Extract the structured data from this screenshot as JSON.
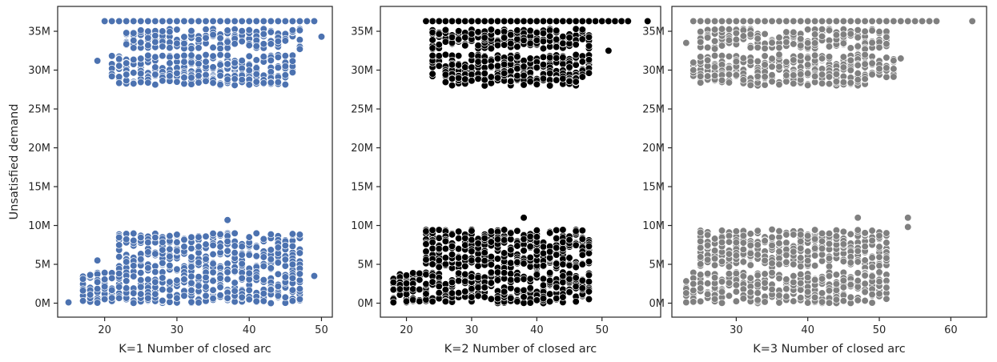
{
  "chart_data": [
    {
      "type": "scatter",
      "title": "",
      "xlabel": "K=1 Number of closed arc",
      "ylabel": "Unsatisfied demand",
      "xlim": [
        13.5,
        51.5
      ],
      "ylim": [
        -1.8,
        38.2
      ],
      "xticks": [
        {
          "value": 20,
          "label": "20"
        },
        {
          "value": 30,
          "label": "30"
        },
        {
          "value": 40,
          "label": "40"
        },
        {
          "value": 50,
          "label": "50"
        }
      ],
      "yticks": [
        {
          "value": 0,
          "label": "0M"
        },
        {
          "value": 5,
          "label": "5M"
        },
        {
          "value": 10,
          "label": "10M"
        },
        {
          "value": 15,
          "label": "15M"
        },
        {
          "value": 20,
          "label": "20M"
        },
        {
          "value": 25,
          "label": "25M"
        },
        {
          "value": 30,
          "label": "30M"
        },
        {
          "value": 35,
          "label": "35M"
        }
      ],
      "y_unit": "millions",
      "marker_color": "#4c72b0",
      "clusters": [
        {
          "x_range": [
            20,
            49
          ],
          "y_center": 36.3,
          "y_spread": 0.05
        },
        {
          "x_range": [
            23,
            47
          ],
          "y_center": 34.0,
          "y_spread": 1.3
        },
        {
          "x_range": [
            21,
            46
          ],
          "y_center": 30.5,
          "y_spread": 1.5
        },
        {
          "x_range": [
            22,
            45
          ],
          "y_center": 28.8,
          "y_spread": 0.8
        },
        {
          "x_range": [
            22,
            47
          ],
          "y_center": 6.5,
          "y_spread": 2.5
        },
        {
          "x_range": [
            17,
            47
          ],
          "y_center": 2.0,
          "y_spread": 2.0
        }
      ],
      "points": [
        {
          "x": 15,
          "y": 0.1
        },
        {
          "x": 17,
          "y": 0.3
        },
        {
          "x": 19,
          "y": 5.5
        },
        {
          "x": 19,
          "y": 31.2
        },
        {
          "x": 50,
          "y": 34.3
        },
        {
          "x": 49,
          "y": 3.5
        },
        {
          "x": 20,
          "y": 36.3
        },
        {
          "x": 49,
          "y": 36.3
        },
        {
          "x": 37,
          "y": 10.7
        },
        {
          "x": 21,
          "y": 29.2
        }
      ],
      "legend": "none",
      "grid": false
    },
    {
      "type": "scatter",
      "title": "",
      "xlabel": "K=2 Number of closed arc",
      "ylabel": "",
      "xlim": [
        16.0,
        59.0
      ],
      "ylim": [
        -1.8,
        38.2
      ],
      "xticks": [
        {
          "value": 20,
          "label": "20"
        },
        {
          "value": 30,
          "label": "30"
        },
        {
          "value": 40,
          "label": "40"
        },
        {
          "value": 50,
          "label": "50"
        }
      ],
      "yticks": [
        {
          "value": 0,
          "label": "0M"
        },
        {
          "value": 5,
          "label": "5M"
        },
        {
          "value": 10,
          "label": "10M"
        },
        {
          "value": 15,
          "label": "15M"
        },
        {
          "value": 20,
          "label": "20M"
        },
        {
          "value": 25,
          "label": "25M"
        },
        {
          "value": 30,
          "label": "30M"
        },
        {
          "value": 35,
          "label": "35M"
        }
      ],
      "y_unit": "millions",
      "marker_color": "#000000",
      "clusters": [
        {
          "x_range": [
            23,
            54
          ],
          "y_center": 36.3,
          "y_spread": 0.05
        },
        {
          "x_range": [
            24,
            48
          ],
          "y_center": 34.0,
          "y_spread": 1.3
        },
        {
          "x_range": [
            24,
            48
          ],
          "y_center": 30.5,
          "y_spread": 1.5
        },
        {
          "x_range": [
            26,
            46
          ],
          "y_center": 28.8,
          "y_spread": 0.8
        },
        {
          "x_range": [
            23,
            48
          ],
          "y_center": 7.0,
          "y_spread": 2.5
        },
        {
          "x_range": [
            18,
            48
          ],
          "y_center": 2.0,
          "y_spread": 2.0
        }
      ],
      "points": [
        {
          "x": 18,
          "y": 0.1
        },
        {
          "x": 57,
          "y": 36.3
        },
        {
          "x": 54,
          "y": 36.3
        },
        {
          "x": 51,
          "y": 32.5
        },
        {
          "x": 38,
          "y": 11.0
        },
        {
          "x": 23,
          "y": 5.6
        },
        {
          "x": 48,
          "y": 1.5
        },
        {
          "x": 23,
          "y": 36.3
        }
      ],
      "legend": "none",
      "grid": false
    },
    {
      "type": "scatter",
      "title": "",
      "xlabel": "K=3 Number of closed arc",
      "ylabel": "",
      "xlim": [
        21.0,
        65.0
      ],
      "ylim": [
        -1.8,
        38.2
      ],
      "xticks": [
        {
          "value": 30,
          "label": "30"
        },
        {
          "value": 40,
          "label": "40"
        },
        {
          "value": 50,
          "label": "50"
        },
        {
          "value": 60,
          "label": "60"
        }
      ],
      "yticks": [
        {
          "value": 0,
          "label": "0M"
        },
        {
          "value": 5,
          "label": "5M"
        },
        {
          "value": 10,
          "label": "10M"
        },
        {
          "value": 15,
          "label": "15M"
        },
        {
          "value": 20,
          "label": "20M"
        },
        {
          "value": 25,
          "label": "25M"
        },
        {
          "value": 30,
          "label": "30M"
        },
        {
          "value": 35,
          "label": "35M"
        }
      ],
      "y_unit": "millions",
      "marker_color": "#808080",
      "clusters": [
        {
          "x_range": [
            24,
            58
          ],
          "y_center": 36.3,
          "y_spread": 0.05
        },
        {
          "x_range": [
            25,
            51
          ],
          "y_center": 34.0,
          "y_spread": 1.3
        },
        {
          "x_range": [
            24,
            52
          ],
          "y_center": 30.5,
          "y_spread": 1.5
        },
        {
          "x_range": [
            25,
            48
          ],
          "y_center": 28.8,
          "y_spread": 0.8
        },
        {
          "x_range": [
            25,
            51
          ],
          "y_center": 7.0,
          "y_spread": 2.5
        },
        {
          "x_range": [
            23,
            51
          ],
          "y_center": 2.0,
          "y_spread": 2.0
        }
      ],
      "points": [
        {
          "x": 63,
          "y": 36.3
        },
        {
          "x": 23,
          "y": 33.5
        },
        {
          "x": 23,
          "y": 1.3
        },
        {
          "x": 23,
          "y": 0.1
        },
        {
          "x": 54,
          "y": 11.0
        },
        {
          "x": 54,
          "y": 9.8
        },
        {
          "x": 53,
          "y": 31.5
        },
        {
          "x": 51,
          "y": 2.0
        },
        {
          "x": 47,
          "y": 11.0
        },
        {
          "x": 24,
          "y": 36.3
        }
      ],
      "legend": "none",
      "grid": false
    }
  ]
}
